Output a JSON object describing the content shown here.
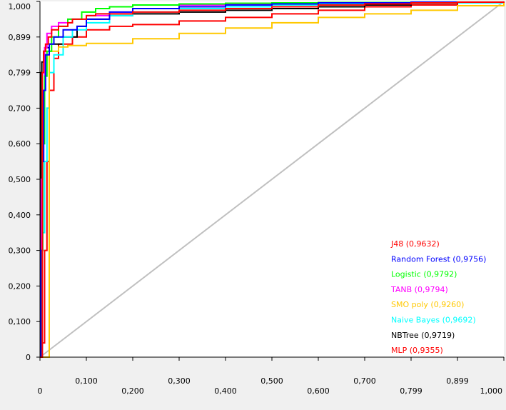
{
  "chart_data": {
    "type": "line",
    "title": "",
    "xlabel": "",
    "ylabel": "",
    "xlim": [
      0,
      1
    ],
    "ylim": [
      0,
      1
    ],
    "grid": false,
    "legend_position": "bottom-right",
    "x_ticks": [
      {
        "value": 0,
        "label": "0"
      },
      {
        "value": 0.1,
        "label": "0,100"
      },
      {
        "value": 0.2,
        "label": "0,200"
      },
      {
        "value": 0.3,
        "label": "0,300"
      },
      {
        "value": 0.4,
        "label": "0,400"
      },
      {
        "value": 0.5,
        "label": "0,500"
      },
      {
        "value": 0.6,
        "label": "0,600"
      },
      {
        "value": 0.7,
        "label": "0,700"
      },
      {
        "value": 0.8,
        "label": "0,799"
      },
      {
        "value": 0.9,
        "label": "0,899"
      },
      {
        "value": 1.0,
        "label": "1,000"
      }
    ],
    "y_ticks": [
      {
        "value": 0,
        "label": "0"
      },
      {
        "value": 0.1,
        "label": "0,100"
      },
      {
        "value": 0.2,
        "label": "0,200"
      },
      {
        "value": 0.3,
        "label": "0,300"
      },
      {
        "value": 0.4,
        "label": "0,400"
      },
      {
        "value": 0.5,
        "label": "0,500"
      },
      {
        "value": 0.6,
        "label": "0,600"
      },
      {
        "value": 0.7,
        "label": "0,700"
      },
      {
        "value": 0.8,
        "label": "0,799"
      },
      {
        "value": 0.9,
        "label": "0,899"
      },
      {
        "value": 1.0,
        "label": "1,000"
      }
    ],
    "diagonal": {
      "color": "#c0c0c0",
      "x": [
        0,
        1
      ],
      "y": [
        0,
        1
      ]
    },
    "series": [
      {
        "name": "J48 (0,9632)",
        "color": "#ff0000",
        "x": [
          0,
          0.005,
          0.008,
          0.012,
          0.018,
          0.025,
          0.04,
          0.06,
          0.07,
          0.1,
          0.12,
          0.2,
          0.3,
          0.4,
          0.5,
          0.6,
          0.7,
          0.8,
          0.9,
          1.0
        ],
        "y": [
          0,
          0.8,
          0.86,
          0.88,
          0.9,
          0.92,
          0.93,
          0.94,
          0.95,
          0.96,
          0.965,
          0.97,
          0.975,
          0.98,
          0.985,
          0.99,
          0.993,
          0.996,
          0.998,
          1.0
        ]
      },
      {
        "name": "Random Forest (0,9756)",
        "color": "#0000ff",
        "x": [
          0,
          0.002,
          0.005,
          0.008,
          0.012,
          0.02,
          0.03,
          0.05,
          0.08,
          0.1,
          0.15,
          0.2,
          0.3,
          0.4,
          0.5,
          0.6,
          0.8,
          1.0
        ],
        "y": [
          0,
          0.3,
          0.55,
          0.75,
          0.85,
          0.88,
          0.9,
          0.92,
          0.93,
          0.95,
          0.97,
          0.98,
          0.985,
          0.99,
          0.993,
          0.996,
          0.998,
          1.0
        ]
      },
      {
        "name": "Logistic (0,9792)",
        "color": "#00ff00",
        "x": [
          0,
          0.003,
          0.006,
          0.01,
          0.015,
          0.025,
          0.04,
          0.06,
          0.09,
          0.12,
          0.15,
          0.2,
          0.3,
          0.4,
          0.5,
          0.6,
          0.8,
          1.0
        ],
        "y": [
          0,
          0.3,
          0.6,
          0.79,
          0.86,
          0.9,
          0.93,
          0.95,
          0.97,
          0.98,
          0.985,
          0.99,
          0.993,
          0.995,
          0.996,
          0.997,
          0.998,
          1.0
        ]
      },
      {
        "name": "TANB (0,9794)",
        "color": "#ff00ff",
        "x": [
          0,
          0.003,
          0.006,
          0.01,
          0.015,
          0.025,
          0.04,
          0.06,
          0.1,
          0.15,
          0.2,
          0.3,
          0.4,
          0.5,
          0.6,
          0.8,
          1.0
        ],
        "y": [
          0,
          0.5,
          0.75,
          0.87,
          0.91,
          0.93,
          0.94,
          0.95,
          0.96,
          0.97,
          0.98,
          0.99,
          0.993,
          0.995,
          0.996,
          0.998,
          1.0
        ]
      },
      {
        "name": "SMO poly (0,9260)",
        "color": "#ffc800",
        "x": [
          0,
          0.02,
          0.04,
          0.06,
          0.1,
          0.2,
          0.3,
          0.4,
          0.5,
          0.6,
          0.7,
          0.8,
          0.9,
          1.0
        ],
        "y": [
          0,
          0.86,
          0.872,
          0.876,
          0.882,
          0.895,
          0.91,
          0.925,
          0.94,
          0.955,
          0.965,
          0.975,
          0.988,
          1.0
        ]
      },
      {
        "name": "Naive Bayes (0,9692)",
        "color": "#00ffff",
        "x": [
          0,
          0.005,
          0.01,
          0.015,
          0.02,
          0.03,
          0.05,
          0.07,
          0.1,
          0.15,
          0.2,
          0.3,
          0.4,
          0.5,
          0.6,
          0.8,
          1.0
        ],
        "y": [
          0,
          0.35,
          0.55,
          0.7,
          0.8,
          0.85,
          0.9,
          0.92,
          0.94,
          0.96,
          0.97,
          0.98,
          0.985,
          0.99,
          0.993,
          0.996,
          1.0
        ]
      },
      {
        "name": "NBTree (0,9719)",
        "color": "#000000",
        "x": [
          0,
          0.002,
          0.004,
          0.008,
          0.012,
          0.02,
          0.05,
          0.08,
          0.1,
          0.15,
          0.2,
          0.3,
          0.4,
          0.5,
          0.6,
          0.7,
          0.8,
          0.9,
          1.0
        ],
        "y": [
          0,
          0.8,
          0.83,
          0.86,
          0.87,
          0.88,
          0.9,
          0.93,
          0.95,
          0.96,
          0.965,
          0.97,
          0.975,
          0.98,
          0.985,
          0.99,
          0.995,
          0.998,
          1.0
        ]
      },
      {
        "name": "MLP (0,9355)",
        "color": "#ff0000",
        "x": [
          0,
          0.005,
          0.01,
          0.015,
          0.02,
          0.03,
          0.04,
          0.07,
          0.1,
          0.15,
          0.2,
          0.3,
          0.4,
          0.5,
          0.6,
          0.7,
          0.8,
          0.9,
          1.0
        ],
        "y": [
          0,
          0.04,
          0.3,
          0.55,
          0.75,
          0.84,
          0.88,
          0.9,
          0.92,
          0.93,
          0.935,
          0.945,
          0.955,
          0.965,
          0.975,
          0.985,
          0.99,
          0.996,
          1.0
        ]
      }
    ]
  }
}
